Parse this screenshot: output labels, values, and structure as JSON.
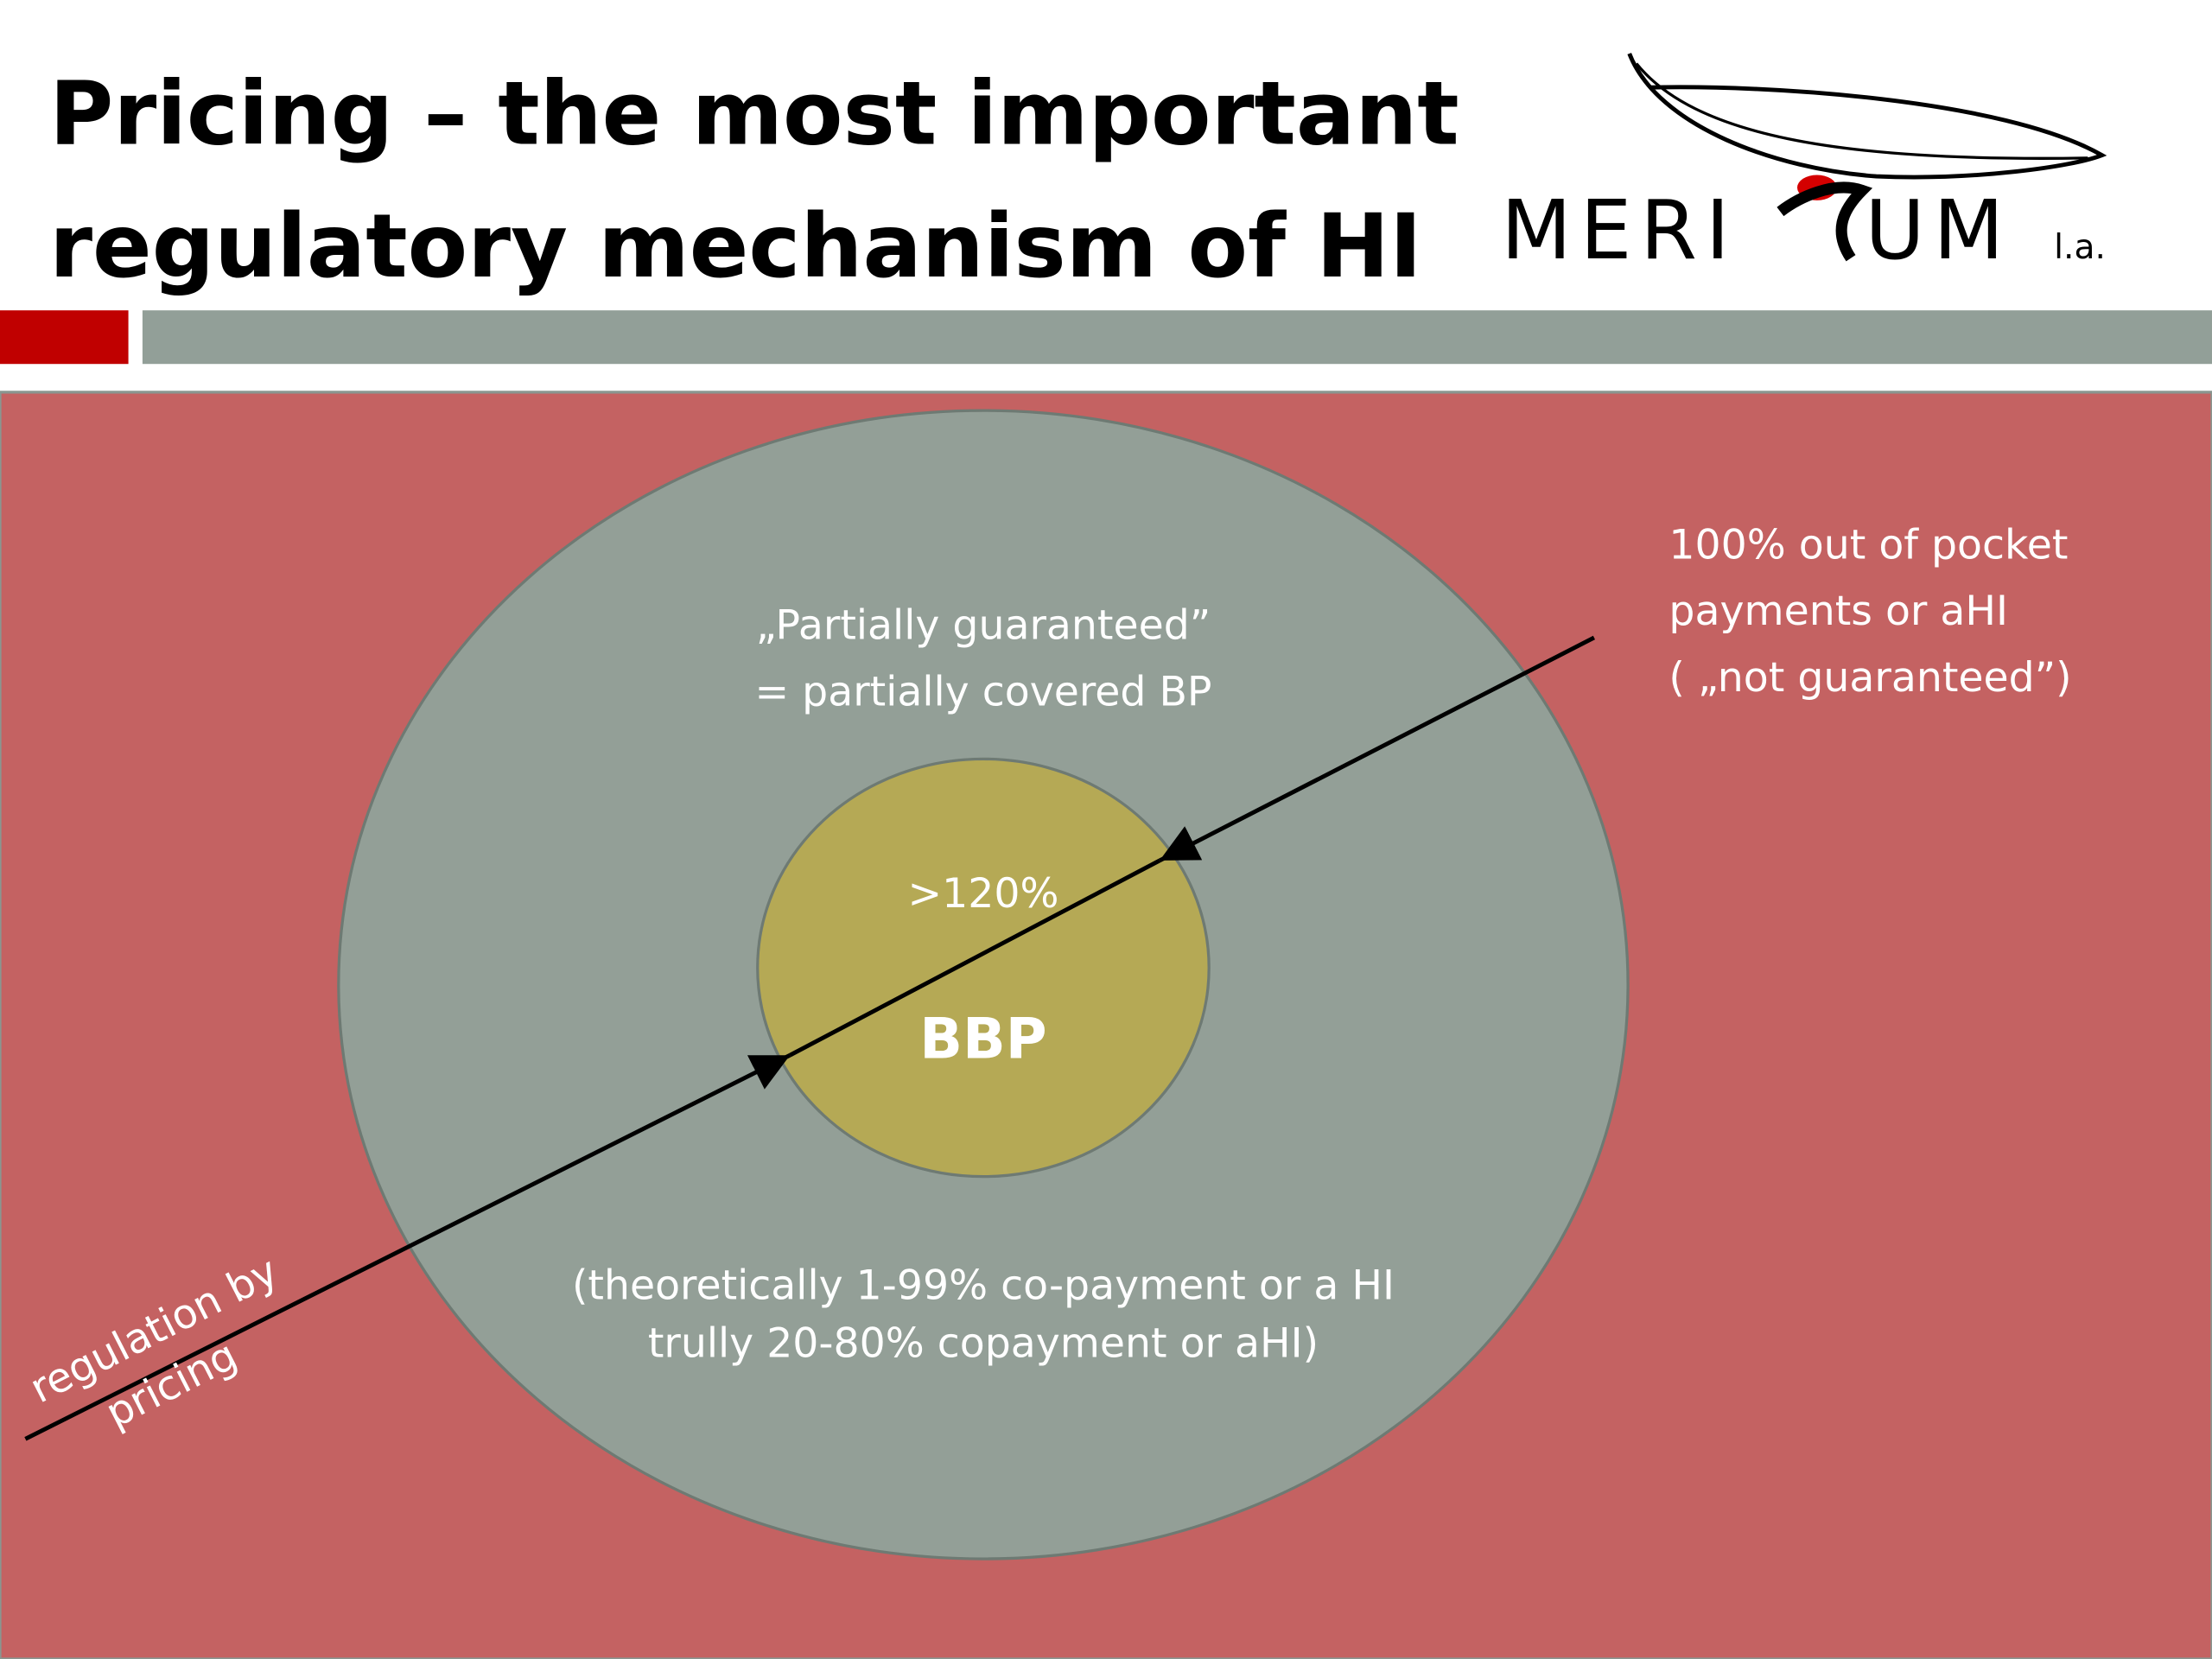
{
  "header": {
    "title_lines": [
      "Pricing – the most important",
      "regulatory mechanism of HI"
    ],
    "logo": {
      "left": "MERI",
      "right": "UM",
      "suffix": "l.a."
    }
  },
  "diagram": {
    "outer_label": [
      "„Partially guaranteed”",
      "= partially covered BP"
    ],
    "inner_label": ">120%",
    "inner_title": "BBP",
    "bottom_label": [
      "(theoretically 1-99% co-payment or a HI",
      "trully 20-80% copayment or aHI)"
    ],
    "outside_label": [
      "100% out of pocket",
      "payments or aHI",
      "( „not guaranteed”)"
    ],
    "arrow_label": [
      "regulation by",
      "pricing"
    ]
  }
}
